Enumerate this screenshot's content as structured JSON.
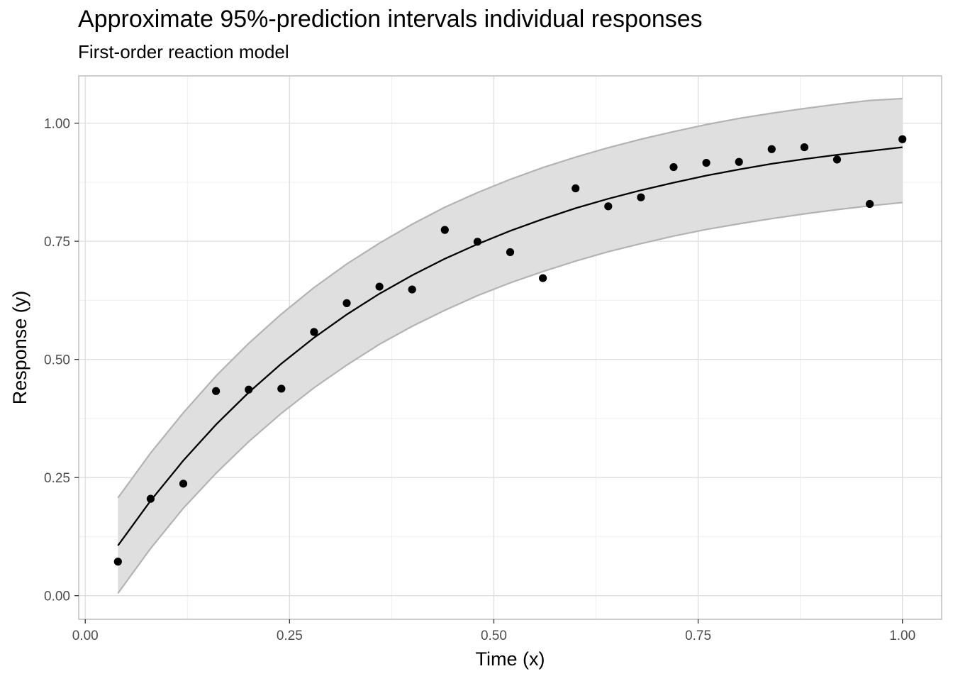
{
  "title": "Approximate 95%-prediction intervals individual responses",
  "subtitle": "First-order reaction model",
  "chart_data": {
    "type": "scatter",
    "xlabel": "Time (x)",
    "ylabel": "Response (y)",
    "xlim": [
      -0.008,
      1.048
    ],
    "ylim": [
      -0.05,
      1.1
    ],
    "x_ticks": [
      "0.00",
      "0.25",
      "0.50",
      "0.75",
      "1.00"
    ],
    "y_ticks": [
      "0.00",
      "0.25",
      "0.50",
      "0.75",
      "1.00"
    ],
    "grid": true,
    "points": {
      "x": [
        0.04,
        0.08,
        0.12,
        0.16,
        0.2,
        0.24,
        0.28,
        0.32,
        0.36,
        0.4,
        0.44,
        0.48,
        0.52,
        0.56,
        0.6,
        0.64,
        0.68,
        0.72,
        0.76,
        0.8,
        0.84,
        0.88,
        0.92,
        0.96,
        1.0
      ],
      "y": [
        0.072,
        0.205,
        0.237,
        0.433,
        0.436,
        0.438,
        0.558,
        0.619,
        0.654,
        0.648,
        0.774,
        0.749,
        0.727,
        0.672,
        0.862,
        0.824,
        0.843,
        0.907,
        0.916,
        0.918,
        0.945,
        0.949,
        0.923,
        0.829,
        0.966
      ]
    },
    "fit": {
      "x": [
        0.04,
        0.08,
        0.12,
        0.16,
        0.2,
        0.24,
        0.28,
        0.32,
        0.36,
        0.4,
        0.44,
        0.48,
        0.52,
        0.56,
        0.6,
        0.64,
        0.68,
        0.72,
        0.76,
        0.8,
        0.84,
        0.88,
        0.92,
        0.96,
        1.0
      ],
      "y": [
        0.106,
        0.201,
        0.286,
        0.362,
        0.43,
        0.491,
        0.546,
        0.595,
        0.639,
        0.678,
        0.713,
        0.744,
        0.772,
        0.797,
        0.82,
        0.84,
        0.858,
        0.874,
        0.889,
        0.902,
        0.914,
        0.924,
        0.933,
        0.941,
        0.949
      ]
    },
    "interval_lower": [
      0.005,
      0.1,
      0.185,
      0.259,
      0.326,
      0.386,
      0.44,
      0.488,
      0.532,
      0.57,
      0.604,
      0.635,
      0.662,
      0.686,
      0.708,
      0.728,
      0.745,
      0.761,
      0.775,
      0.787,
      0.798,
      0.808,
      0.817,
      0.825,
      0.832
    ],
    "interval_upper": [
      0.207,
      0.302,
      0.387,
      0.465,
      0.534,
      0.596,
      0.652,
      0.702,
      0.746,
      0.786,
      0.822,
      0.853,
      0.881,
      0.906,
      0.928,
      0.948,
      0.966,
      0.982,
      0.997,
      1.01,
      1.021,
      1.031,
      1.04,
      1.048,
      1.052
    ]
  },
  "colors": {
    "band_fill": "#dfdfdf",
    "band_edge": "#b3b3b3",
    "fit_line": "#000000",
    "points": "#000000",
    "grid_major": "#dedede",
    "grid_minor": "#efefef",
    "panel_border": "#b3b3b3"
  }
}
